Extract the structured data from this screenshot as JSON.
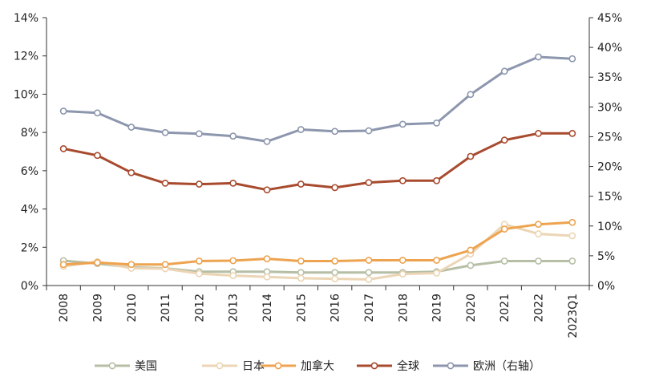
{
  "chart_data": {
    "type": "line",
    "categories": [
      "2008",
      "2009",
      "2010",
      "2011",
      "2012",
      "2013",
      "2014",
      "2015",
      "2016",
      "2017",
      "2018",
      "2019",
      "2020",
      "2021",
      "2022",
      "2023Q1"
    ],
    "y_left": {
      "ylim": [
        0,
        14
      ],
      "ticks": [
        "0%",
        "2%",
        "4%",
        "6%",
        "8%",
        "10%",
        "12%",
        "14%"
      ]
    },
    "y_right": {
      "ylim": [
        0,
        45
      ],
      "ticks": [
        "0%",
        "5%",
        "10%",
        "15%",
        "20%",
        "25%",
        "30%",
        "35%",
        "40%",
        "45%"
      ]
    },
    "grid": false,
    "legend_position": "bottom",
    "series": [
      {
        "name": "美国",
        "axis": "left",
        "color": "#b6bfa5",
        "values": [
          1.3,
          1.15,
          0.95,
          0.9,
          0.72,
          0.72,
          0.72,
          0.68,
          0.68,
          0.68,
          0.68,
          0.72,
          1.05,
          1.28,
          1.28,
          1.28
        ]
      },
      {
        "name": "日本",
        "axis": "left",
        "color": "#ecd5b5",
        "values": [
          1.0,
          1.25,
          0.9,
          0.88,
          0.62,
          0.52,
          0.45,
          0.38,
          0.35,
          0.32,
          0.6,
          0.65,
          1.65,
          3.2,
          2.7,
          2.6
        ]
      },
      {
        "name": "加拿大",
        "axis": "left",
        "color": "#eda34f",
        "values": [
          1.1,
          1.2,
          1.1,
          1.1,
          1.28,
          1.3,
          1.4,
          1.28,
          1.28,
          1.32,
          1.32,
          1.32,
          1.85,
          2.95,
          3.2,
          3.3
        ]
      },
      {
        "name": "全球",
        "axis": "left",
        "color": "#a84a2e",
        "values": [
          7.15,
          6.8,
          5.9,
          5.35,
          5.3,
          5.35,
          5.0,
          5.3,
          5.12,
          5.38,
          5.48,
          5.48,
          6.75,
          7.6,
          7.95,
          7.95
        ]
      },
      {
        "name": "欧洲（右轴）",
        "axis": "right",
        "color": "#8c96ad",
        "values": [
          29.3,
          29.0,
          26.6,
          25.7,
          25.5,
          25.1,
          24.2,
          26.2,
          25.9,
          26.0,
          27.1,
          27.3,
          32.1,
          36.0,
          38.4,
          38.1
        ]
      }
    ]
  }
}
